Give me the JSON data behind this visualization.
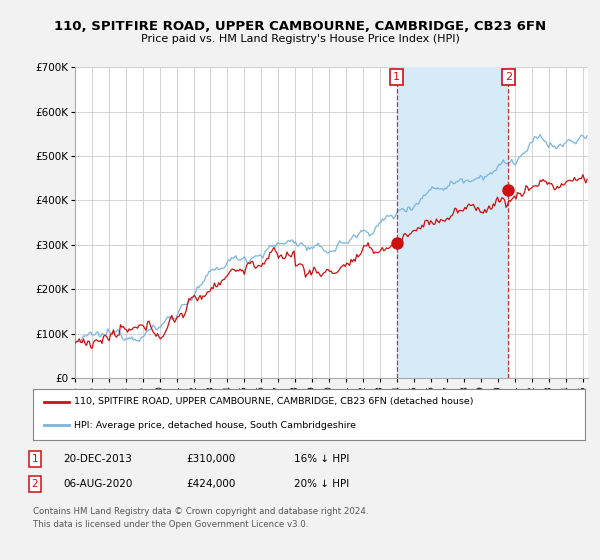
{
  "title": "110, SPITFIRE ROAD, UPPER CAMBOURNE, CAMBRIDGE, CB23 6FN",
  "subtitle": "Price paid vs. HM Land Registry's House Price Index (HPI)",
  "legend_line1": "110, SPITFIRE ROAD, UPPER CAMBOURNE, CAMBRIDGE, CB23 6FN (detached house)",
  "legend_line2": "HPI: Average price, detached house, South Cambridgeshire",
  "footnote": "Contains HM Land Registry data © Crown copyright and database right 2024.\nThis data is licensed under the Open Government Licence v3.0.",
  "annotation1": {
    "label": "1",
    "date": "20-DEC-2013",
    "price": "£310,000",
    "pct": "16% ↓ HPI",
    "x_year": 2014.0,
    "y_val": 305000
  },
  "annotation2": {
    "label": "2",
    "date": "06-AUG-2020",
    "price": "£424,000",
    "pct": "20% ↓ HPI",
    "x_year": 2020.6,
    "y_val": 424000
  },
  "hpi_color": "#7ab5e0",
  "hpi_fill_color": "#d6eaf8",
  "price_color": "#cc1111",
  "background_color": "#f2f2f2",
  "plot_bg_color": "#ffffff",
  "grid_color": "#cccccc",
  "ylim": [
    0,
    700000
  ],
  "xlim_start": 1995,
  "xlim_end": 2025.3
}
